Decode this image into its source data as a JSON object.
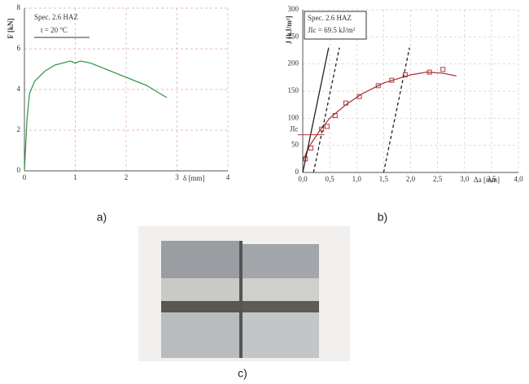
{
  "chart_data": [
    {
      "type": "line",
      "ylabel": "F [kN]",
      "xlabel": "δ [mm]",
      "annotations": [
        "Spec. 2.6 HAZ",
        "t = 20 °C"
      ],
      "xlim": [
        0,
        4
      ],
      "xticks": [
        0,
        1,
        2,
        3,
        4
      ],
      "ylim": [
        0,
        8
      ],
      "yticks": [
        0,
        2,
        4,
        6,
        8
      ],
      "grid": true,
      "grid_color": "#e0a0c0",
      "series": [
        {
          "color": "#3a9a4a",
          "markers": false,
          "x": [
            0,
            0.05,
            0.1,
            0.2,
            0.4,
            0.6,
            0.9,
            1.0,
            1.1,
            1.3,
            1.6,
            2.0,
            2.4,
            2.8
          ],
          "values": [
            0,
            2.5,
            3.8,
            4.4,
            4.9,
            5.2,
            5.4,
            5.3,
            5.4,
            5.3,
            5.0,
            4.6,
            4.2,
            3.6
          ]
        }
      ]
    },
    {
      "type": "line",
      "ylabel": "J [kJ/m²]",
      "xlabel": "Δa [mm]",
      "annotations": [
        "Spec. 2.6 HAZ",
        "JIc = 69.5 kJ/m²",
        "JIc"
      ],
      "jic": 69.5,
      "xlim": [
        0,
        4
      ],
      "xticks": [
        {
          "value": 0,
          "label": "0,0"
        },
        {
          "value": 0.5,
          "label": "0,5"
        },
        {
          "value": 1,
          "label": "1,0"
        },
        {
          "value": 1.5,
          "label": "1,5"
        },
        {
          "value": 2,
          "label": "2,0"
        },
        {
          "value": 2.5,
          "label": "2,5"
        },
        {
          "value": 3,
          "label": "3,0"
        },
        {
          "value": 3.5,
          "label": "3,5"
        },
        {
          "value": 4,
          "label": "4,0"
        }
      ],
      "ylim": [
        0,
        300
      ],
      "yticks": [
        0,
        50,
        100,
        150,
        200,
        250,
        300
      ],
      "grid": true,
      "grid_color": "#cccccc",
      "series": [
        {
          "color": "#b03a3a",
          "markers": false,
          "x": [
            0,
            0.1,
            0.3,
            0.5,
            0.8,
            1.1,
            1.5,
            2.0,
            2.3,
            2.6,
            2.85
          ],
          "values": [
            20,
            45,
            75,
            100,
            125,
            145,
            165,
            180,
            185,
            183,
            178
          ]
        },
        {
          "color": "#b03a3a",
          "markers": true,
          "x": [
            0.05,
            0.15,
            0.35,
            0.45,
            0.6,
            0.8,
            1.05,
            1.4,
            1.65,
            1.9,
            2.35,
            2.6
          ],
          "values": [
            25,
            45,
            80,
            85,
            105,
            128,
            140,
            160,
            170,
            180,
            185,
            190
          ]
        },
        {
          "color": "#222222",
          "markers": false,
          "x": [
            0,
            0.48
          ],
          "values": [
            0,
            230
          ]
        },
        {
          "color": "#222222",
          "markers": false,
          "dash": true,
          "x": [
            0.2,
            0.68
          ],
          "values": [
            0,
            230
          ]
        },
        {
          "color": "#222222",
          "markers": false,
          "dash": true,
          "x": [
            1.5,
            1.98
          ],
          "values": [
            0,
            230
          ]
        }
      ]
    }
  ],
  "panels": [
    "a)",
    "b)",
    "c)"
  ]
}
